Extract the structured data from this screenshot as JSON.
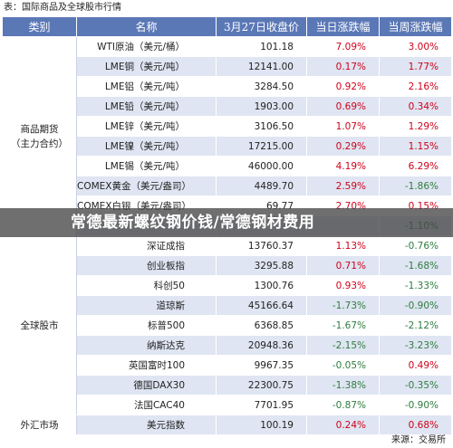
{
  "caption": "表：国际商品及全球股市行情",
  "headers": {
    "category": "类别",
    "name": "名称",
    "close": "3月27日收盘价",
    "daily": "当日涨跌幅",
    "weekly": "当周涨跌幅"
  },
  "categories": {
    "commodities": "商品期货\n（主力合约）",
    "stocks": "全球股市",
    "fx": "外汇市场"
  },
  "rows": [
    {
      "name": "WTI原油（美元/桶）",
      "close": "101.18",
      "daily": "7.09%",
      "weekly": "3.00%"
    },
    {
      "name": "LME铜（美元/吨）",
      "close": "12141.00",
      "daily": "0.17%",
      "weekly": "1.77%"
    },
    {
      "name": "LME铝（美元/吨）",
      "close": "3284.50",
      "daily": "0.92%",
      "weekly": "2.16%"
    },
    {
      "name": "LME铅（美元/吨）",
      "close": "1903.00",
      "daily": "0.69%",
      "weekly": "0.34%"
    },
    {
      "name": "LME锌（美元/吨）",
      "close": "3106.50",
      "daily": "1.07%",
      "weekly": "1.29%"
    },
    {
      "name": "LME镍（美元/吨）",
      "close": "17215.00",
      "daily": "0.29%",
      "weekly": "1.15%"
    },
    {
      "name": "LME锡（美元/吨）",
      "close": "46000.00",
      "daily": "4.19%",
      "weekly": "6.29%"
    },
    {
      "name": "COMEX黄金（美元/盎司）",
      "close": "4489.70",
      "daily": "2.59%",
      "weekly": "-1.86%"
    },
    {
      "name": "COMEX白银（美元/盎司）",
      "close": "69.77",
      "daily": "2.70%",
      "weekly": "0.15%"
    },
    {
      "name": "",
      "close": "",
      "daily": "",
      "weekly": "-1.10%"
    },
    {
      "name": "深证成指",
      "close": "13760.37",
      "daily": "1.13%",
      "weekly": "-0.76%"
    },
    {
      "name": "创业板指",
      "close": "3295.88",
      "daily": "0.71%",
      "weekly": "-1.68%"
    },
    {
      "name": "科创50",
      "close": "1300.76",
      "daily": "0.93%",
      "weekly": "-1.33%"
    },
    {
      "name": "道琼斯",
      "close": "45166.64",
      "daily": "-1.73%",
      "weekly": "-0.90%"
    },
    {
      "name": "标普500",
      "close": "6368.85",
      "daily": "-1.67%",
      "weekly": "-2.12%"
    },
    {
      "name": "纳斯达克",
      "close": "20948.36",
      "daily": "-2.15%",
      "weekly": "-3.23%"
    },
    {
      "name": "英国富时100",
      "close": "9967.35",
      "daily": "-0.05%",
      "weekly": "0.49%"
    },
    {
      "name": "德国DAX30",
      "close": "22300.75",
      "daily": "-1.38%",
      "weekly": "-0.35%"
    },
    {
      "name": "法国CAC40",
      "close": "7701.95",
      "daily": "-0.87%",
      "weekly": "-0.90%"
    },
    {
      "name": "美元指数",
      "close": "100.19",
      "daily": "0.24%",
      "weekly": "0.68%"
    }
  ],
  "banner": "常德最新螺纹钢价钱/常德钢材费用",
  "source": "来源：交易所",
  "colors": {
    "header_bg": "#5b78b6",
    "stripe": "#dfe5f2",
    "up": "#d0021b",
    "down": "#2e7d3e"
  }
}
